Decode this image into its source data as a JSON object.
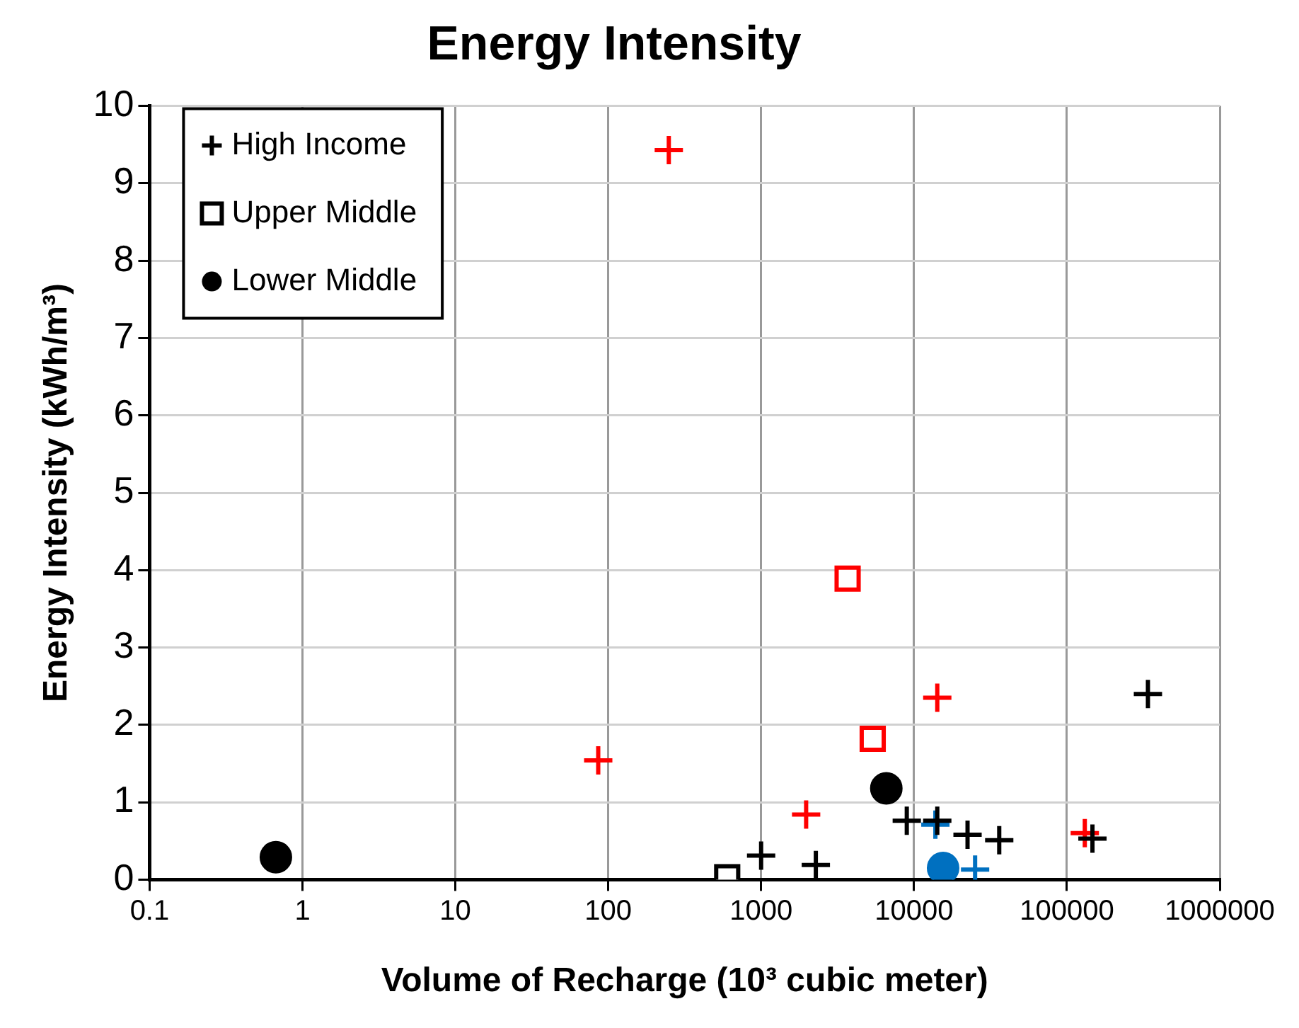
{
  "chart_data": {
    "type": "scatter",
    "title": "Energy Intensity",
    "xlabel": "Volume of Recharge (10³ cubic meter)",
    "ylabel": "Energy Intensity (kWh/m³)",
    "log": "x",
    "xlim": [
      0.1,
      1000000
    ],
    "xticks": [
      0.1,
      1,
      10,
      100,
      1000,
      10000,
      100000,
      1000000
    ],
    "ylim": [
      0,
      10
    ],
    "yticks": [
      0,
      1,
      2,
      3,
      4,
      5,
      6,
      7,
      8,
      9,
      10
    ],
    "grid": true,
    "legend": "top left",
    "series": [
      {
        "name": "High Income",
        "color": "#000000",
        "marker": "cross",
        "x": [
          1000,
          2280,
          8970,
          14200,
          22400,
          36100,
          147000,
          339000
        ],
        "values": [
          0.31,
          0.19,
          0.76,
          0.76,
          0.58,
          0.51,
          0.53,
          2.4
        ]
      },
      {
        "name": "Upper Middle",
        "color": "#000000",
        "marker": "square",
        "x": [
          600
        ],
        "values": [
          0.03
        ]
      },
      {
        "name": "Lower Middle",
        "color": "#000000",
        "marker": "circle",
        "x": [
          0.67,
          6590
        ],
        "values": [
          0.29,
          1.18
        ]
      },
      {
        "color": "#ff0000",
        "marker": "cross",
        "x": [
          249,
          86,
          1970,
          14200,
          131000
        ],
        "values": [
          9.43,
          1.54,
          0.84,
          2.35,
          0.6
        ]
      },
      {
        "color": "#ff0000",
        "marker": "square",
        "x": [
          3680,
          5370
        ],
        "values": [
          3.89,
          1.82
        ]
      },
      {
        "color": "#0070c0",
        "marker": "cross",
        "x": [
          13800,
          25100
        ],
        "values": [
          0.71,
          0.13
        ]
      },
      {
        "color": "#0070c0",
        "marker": "circle",
        "x": [
          15500
        ],
        "values": [
          0.15
        ]
      }
    ]
  }
}
